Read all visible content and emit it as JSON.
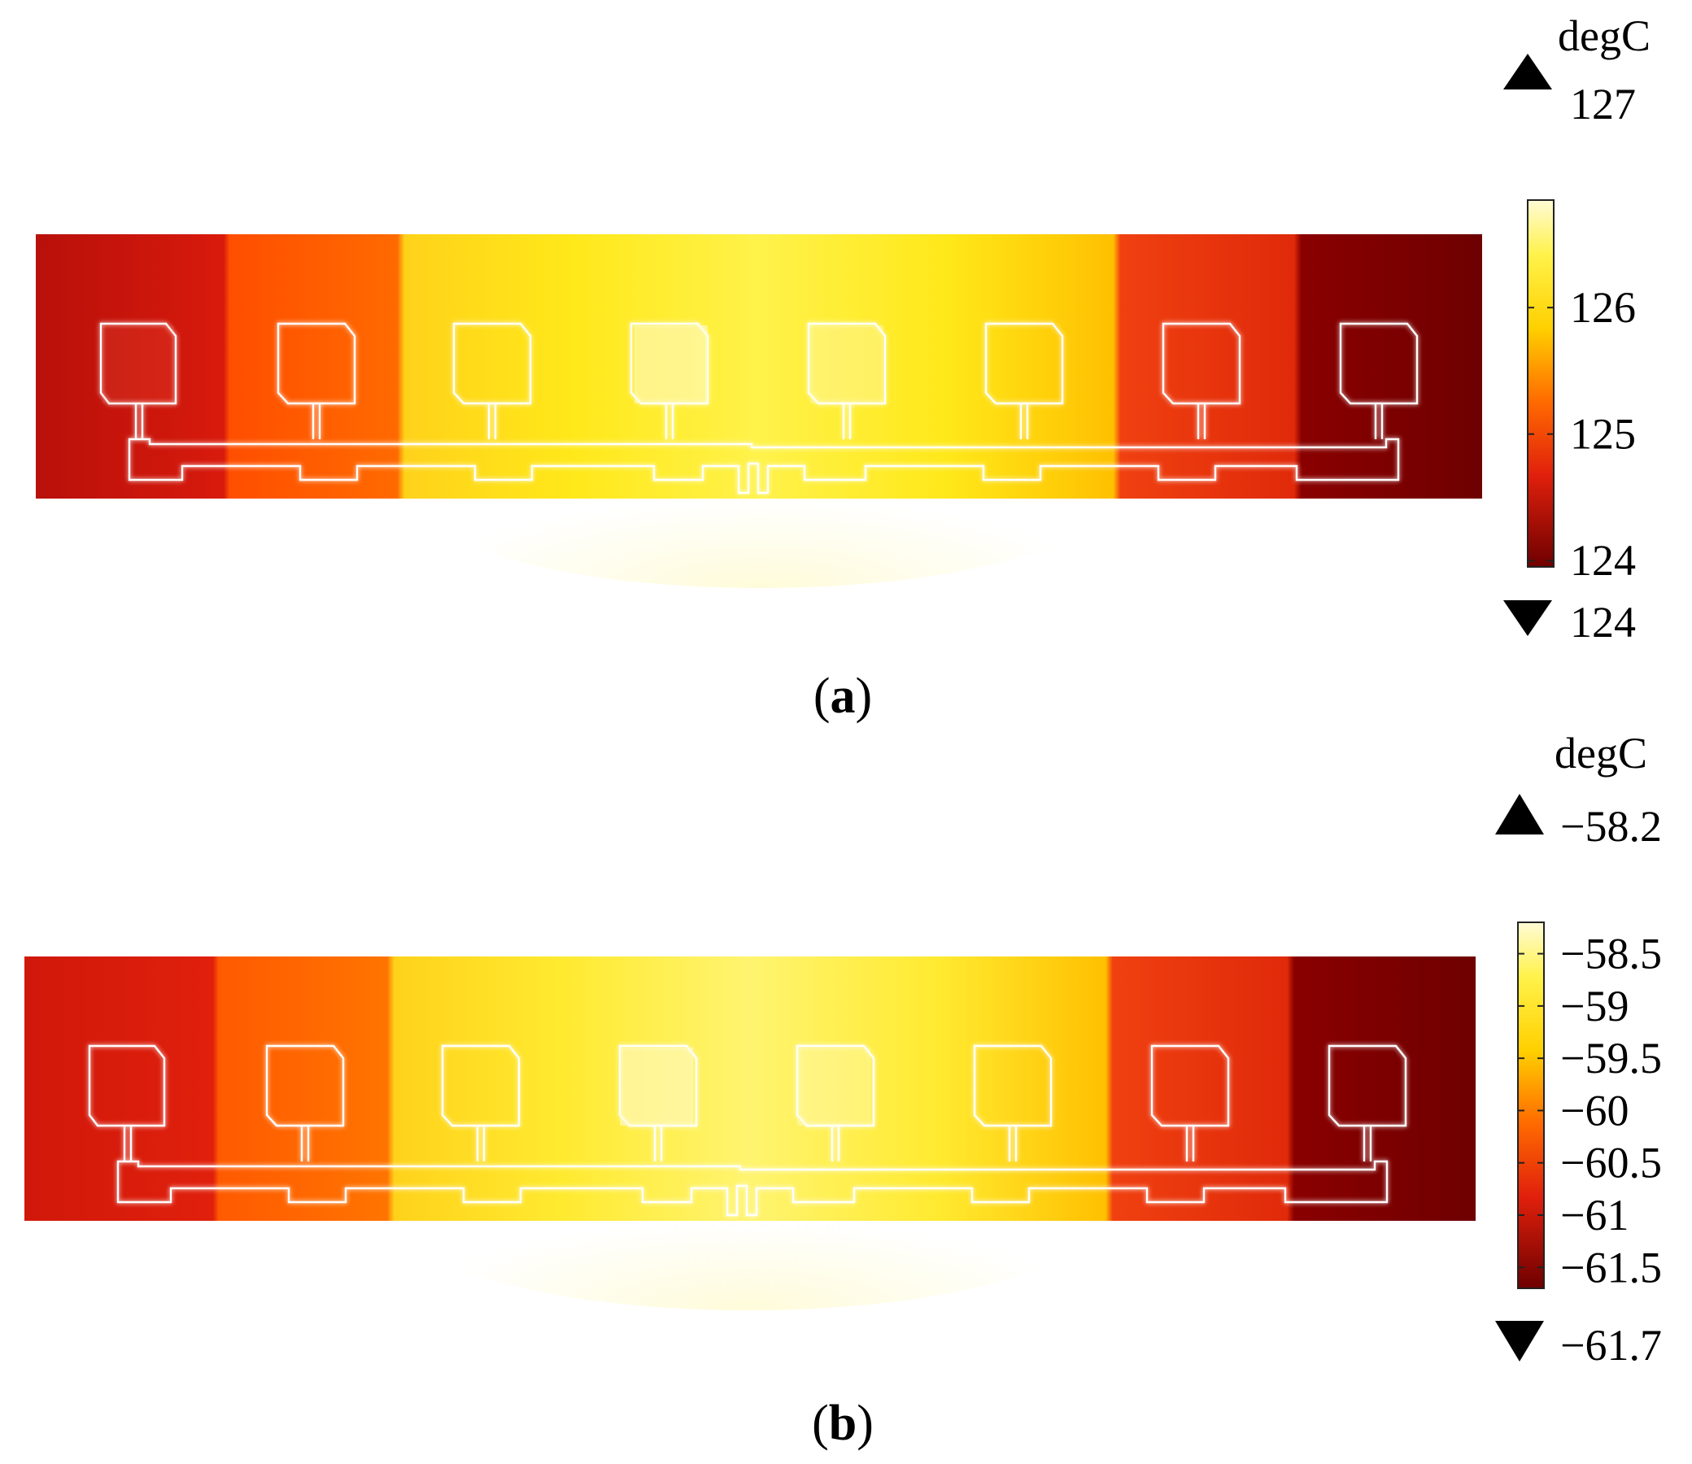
{
  "panels": [
    {
      "label": "a",
      "unit": "degC",
      "max_label": "127",
      "min_label": "124",
      "colorbar_ticks": [
        {
          "text": "126",
          "value": 126
        },
        {
          "text": "125",
          "value": 125
        },
        {
          "text": "124",
          "value": 124
        }
      ],
      "colorbar_range": [
        123.95,
        126.85
      ]
    },
    {
      "label": "b",
      "unit": "degC",
      "max_label": "−58.2",
      "min_label": "−61.7",
      "colorbar_ticks": [
        {
          "text": "−58.5",
          "value": -58.5
        },
        {
          "text": "−59",
          "value": -59
        },
        {
          "text": "−59.5",
          "value": -59.5
        },
        {
          "text": "−60",
          "value": -60
        },
        {
          "text": "−60.5",
          "value": -60.5
        },
        {
          "text": "−61",
          "value": -61
        },
        {
          "text": "−61.5",
          "value": -61.5
        }
      ],
      "colorbar_range": [
        -61.7,
        -58.2
      ]
    }
  ],
  "colors": {
    "dark_red": "#6e0000",
    "red": "#e0200c",
    "orange": "#ff6a00",
    "yellow": "#ffe81a",
    "pale_yellow": "#fffbd6",
    "outline": "#ffffff"
  }
}
